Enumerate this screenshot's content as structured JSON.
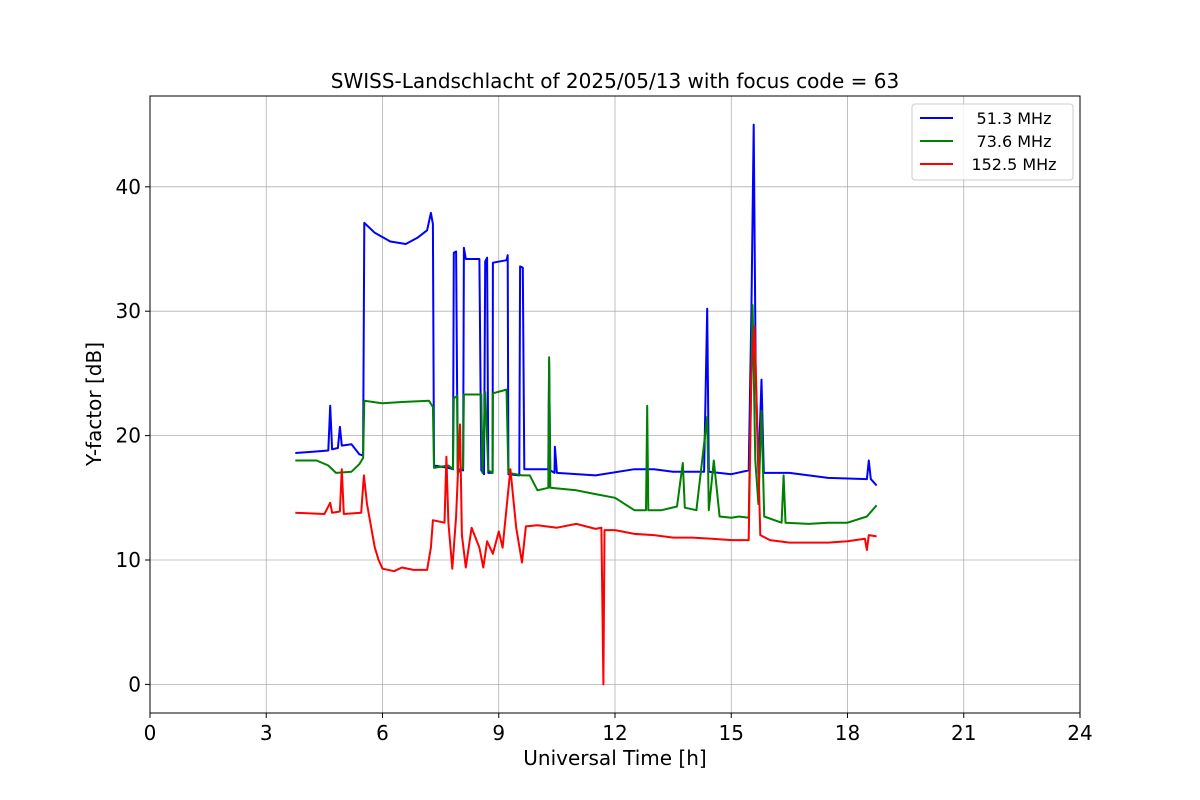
{
  "chart_data": {
    "type": "line",
    "title": "SWISS-Landschlacht of 2025/05/13 with focus code = 63",
    "xlabel": "Universal Time [h]",
    "ylabel": "Y-factor [dB]",
    "xlim": [
      0,
      24
    ],
    "ylim": [
      -2.3,
      47.3
    ],
    "xticks": [
      "0",
      "3",
      "6",
      "9",
      "12",
      "15",
      "18",
      "21",
      "24"
    ],
    "yticks": [
      "0",
      "10",
      "20",
      "30",
      "40"
    ],
    "grid": true,
    "legend_position": "top-right",
    "series": [
      {
        "name": "51.3 MHz",
        "color": "#0000ff",
        "points": [
          [
            3.75,
            18.6
          ],
          [
            4.2,
            18.7
          ],
          [
            4.6,
            18.8
          ],
          [
            4.65,
            22.4
          ],
          [
            4.7,
            18.9
          ],
          [
            4.85,
            19.0
          ],
          [
            4.9,
            20.7
          ],
          [
            4.95,
            19.2
          ],
          [
            5.2,
            19.3
          ],
          [
            5.4,
            18.5
          ],
          [
            5.5,
            18.4
          ],
          [
            5.53,
            37.1
          ],
          [
            5.8,
            36.3
          ],
          [
            6.2,
            35.6
          ],
          [
            6.6,
            35.4
          ],
          [
            6.9,
            35.9
          ],
          [
            7.15,
            36.5
          ],
          [
            7.25,
            37.9
          ],
          [
            7.3,
            37.0
          ],
          [
            7.33,
            17.6
          ],
          [
            7.7,
            17.4
          ],
          [
            7.82,
            17.3
          ],
          [
            7.84,
            34.7
          ],
          [
            7.9,
            34.8
          ],
          [
            7.94,
            17.3
          ],
          [
            8.08,
            17.2
          ],
          [
            8.1,
            35.1
          ],
          [
            8.15,
            34.2
          ],
          [
            8.5,
            34.2
          ],
          [
            8.55,
            17.2
          ],
          [
            8.62,
            16.9
          ],
          [
            8.65,
            34.0
          ],
          [
            8.7,
            34.3
          ],
          [
            8.73,
            17.0
          ],
          [
            8.84,
            17.0
          ],
          [
            8.85,
            33.9
          ],
          [
            9.2,
            34.1
          ],
          [
            9.23,
            34.5
          ],
          [
            9.25,
            16.9
          ],
          [
            9.53,
            16.8
          ],
          [
            9.55,
            33.6
          ],
          [
            9.62,
            33.5
          ],
          [
            9.66,
            17.3
          ],
          [
            10.28,
            17.3
          ],
          [
            10.3,
            26.0
          ],
          [
            10.33,
            17.2
          ],
          [
            10.44,
            17.0
          ],
          [
            10.45,
            19.1
          ],
          [
            10.5,
            17.0
          ],
          [
            11.5,
            16.8
          ],
          [
            12.5,
            17.3
          ],
          [
            13.0,
            17.3
          ],
          [
            13.5,
            17.1
          ],
          [
            14.3,
            17.1
          ],
          [
            14.38,
            30.2
          ],
          [
            14.42,
            17.1
          ],
          [
            15.0,
            16.9
          ],
          [
            15.45,
            17.2
          ],
          [
            15.52,
            30.0
          ],
          [
            15.58,
            45.0
          ],
          [
            15.63,
            25.0
          ],
          [
            15.7,
            17.0
          ],
          [
            15.78,
            24.5
          ],
          [
            15.84,
            17.0
          ],
          [
            16.5,
            17.0
          ],
          [
            17.5,
            16.6
          ],
          [
            18.5,
            16.5
          ],
          [
            18.55,
            18.0
          ],
          [
            18.6,
            16.5
          ],
          [
            18.75,
            16.0
          ]
        ]
      },
      {
        "name": "73.6 MHz",
        "color": "#008000",
        "points": [
          [
            3.75,
            18.0
          ],
          [
            4.3,
            18.0
          ],
          [
            4.6,
            17.6
          ],
          [
            4.8,
            17.0
          ],
          [
            5.2,
            17.1
          ],
          [
            5.4,
            17.7
          ],
          [
            5.5,
            18.2
          ],
          [
            5.53,
            22.8
          ],
          [
            6.0,
            22.6
          ],
          [
            6.5,
            22.7
          ],
          [
            7.2,
            22.8
          ],
          [
            7.3,
            22.3
          ],
          [
            7.33,
            17.4
          ],
          [
            7.7,
            17.6
          ],
          [
            7.82,
            17.3
          ],
          [
            7.84,
            23.0
          ],
          [
            7.93,
            23.2
          ],
          [
            7.94,
            17.0
          ],
          [
            8.08,
            17.4
          ],
          [
            8.1,
            23.3
          ],
          [
            8.55,
            23.3
          ],
          [
            8.58,
            17.0
          ],
          [
            8.65,
            23.5
          ],
          [
            8.73,
            17.2
          ],
          [
            8.84,
            17.0
          ],
          [
            8.85,
            23.4
          ],
          [
            9.2,
            23.7
          ],
          [
            9.25,
            17.0
          ],
          [
            9.6,
            16.8
          ],
          [
            9.8,
            16.8
          ],
          [
            10.0,
            15.6
          ],
          [
            10.28,
            15.8
          ],
          [
            10.3,
            26.3
          ],
          [
            10.33,
            15.8
          ],
          [
            11.0,
            15.6
          ],
          [
            11.5,
            15.3
          ],
          [
            12.0,
            15.0
          ],
          [
            12.5,
            14.0
          ],
          [
            12.8,
            14.0
          ],
          [
            12.83,
            22.4
          ],
          [
            12.86,
            14.0
          ],
          [
            13.2,
            14.0
          ],
          [
            13.6,
            14.3
          ],
          [
            13.75,
            17.8
          ],
          [
            13.8,
            14.2
          ],
          [
            14.1,
            14.0
          ],
          [
            14.38,
            21.5
          ],
          [
            14.42,
            14.0
          ],
          [
            14.55,
            18.0
          ],
          [
            14.7,
            13.5
          ],
          [
            15.0,
            13.4
          ],
          [
            15.2,
            13.5
          ],
          [
            15.45,
            13.4
          ],
          [
            15.55,
            30.5
          ],
          [
            15.62,
            18.0
          ],
          [
            15.7,
            14.5
          ],
          [
            15.78,
            22.0
          ],
          [
            15.85,
            13.5
          ],
          [
            16.3,
            13.0
          ],
          [
            16.35,
            16.8
          ],
          [
            16.4,
            13.0
          ],
          [
            17.0,
            12.9
          ],
          [
            17.5,
            13.0
          ],
          [
            18.0,
            13.0
          ],
          [
            18.5,
            13.5
          ],
          [
            18.75,
            14.4
          ]
        ]
      },
      {
        "name": "152.5 MHz",
        "color": "#ff0000",
        "points": [
          [
            3.75,
            13.8
          ],
          [
            4.5,
            13.7
          ],
          [
            4.65,
            14.6
          ],
          [
            4.7,
            13.8
          ],
          [
            4.9,
            13.9
          ],
          [
            4.95,
            17.3
          ],
          [
            5.0,
            13.7
          ],
          [
            5.45,
            13.8
          ],
          [
            5.52,
            16.8
          ],
          [
            5.6,
            14.5
          ],
          [
            5.8,
            11.0
          ],
          [
            5.9,
            10.0
          ],
          [
            6.0,
            9.3
          ],
          [
            6.3,
            9.1
          ],
          [
            6.5,
            9.4
          ],
          [
            6.8,
            9.2
          ],
          [
            7.15,
            9.2
          ],
          [
            7.25,
            11.0
          ],
          [
            7.3,
            13.2
          ],
          [
            7.6,
            13.0
          ],
          [
            7.65,
            18.3
          ],
          [
            7.7,
            13.0
          ],
          [
            7.8,
            9.3
          ],
          [
            7.9,
            13.5
          ],
          [
            8.0,
            20.9
          ],
          [
            8.05,
            12.0
          ],
          [
            8.15,
            9.4
          ],
          [
            8.3,
            12.6
          ],
          [
            8.5,
            11.0
          ],
          [
            8.6,
            9.4
          ],
          [
            8.7,
            11.5
          ],
          [
            8.85,
            10.5
          ],
          [
            9.0,
            12.3
          ],
          [
            9.1,
            11.0
          ],
          [
            9.3,
            17.3
          ],
          [
            9.45,
            12.6
          ],
          [
            9.6,
            9.8
          ],
          [
            9.7,
            12.7
          ],
          [
            10.0,
            12.8
          ],
          [
            10.5,
            12.6
          ],
          [
            11.0,
            12.9
          ],
          [
            11.5,
            12.5
          ],
          [
            11.65,
            12.6
          ],
          [
            11.7,
            0.0
          ],
          [
            11.73,
            12.4
          ],
          [
            12.0,
            12.4
          ],
          [
            12.5,
            12.1
          ],
          [
            13.0,
            12.0
          ],
          [
            13.5,
            11.8
          ],
          [
            14.0,
            11.8
          ],
          [
            14.5,
            11.7
          ],
          [
            15.0,
            11.6
          ],
          [
            15.45,
            11.6
          ],
          [
            15.52,
            25.0
          ],
          [
            15.6,
            28.8
          ],
          [
            15.68,
            20.0
          ],
          [
            15.75,
            12.0
          ],
          [
            16.0,
            11.6
          ],
          [
            16.5,
            11.4
          ],
          [
            17.0,
            11.4
          ],
          [
            17.5,
            11.4
          ],
          [
            18.0,
            11.5
          ],
          [
            18.45,
            11.7
          ],
          [
            18.5,
            10.8
          ],
          [
            18.55,
            12.0
          ],
          [
            18.75,
            11.9
          ]
        ]
      }
    ]
  }
}
